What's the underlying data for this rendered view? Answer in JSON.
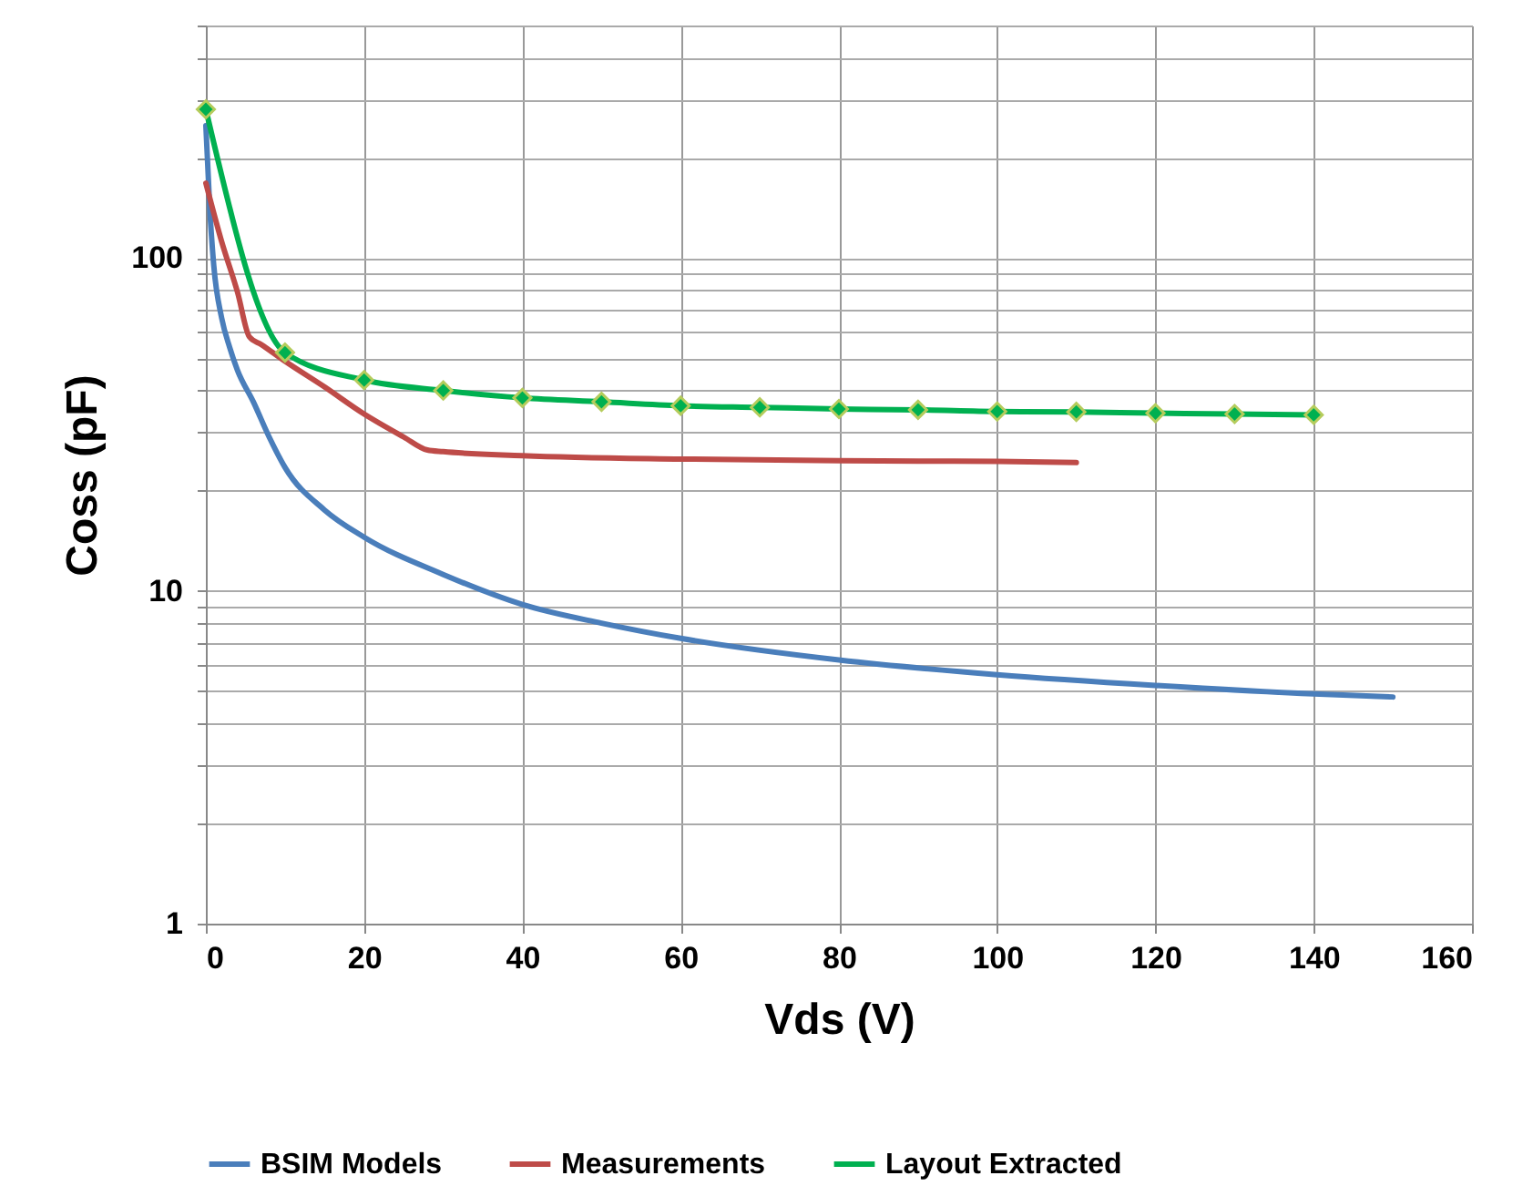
{
  "chart_data": {
    "type": "line",
    "xlabel": "Vds (V)",
    "ylabel": "Coss (pF)",
    "log": "y",
    "grid": true,
    "legend": "bottom",
    "line_style": "solid",
    "xlim": [
      0,
      160
    ],
    "xticks": [
      0,
      20,
      40,
      60,
      80,
      100,
      120,
      140,
      160
    ],
    "ylim": [
      1,
      500
    ],
    "yticks": [
      1,
      {
        "value": 2,
        "label": null
      },
      {
        "value": 3,
        "label": null
      },
      {
        "value": 4,
        "label": null
      },
      {
        "value": 5,
        "label": null
      },
      {
        "value": 6,
        "label": null
      },
      {
        "value": 7,
        "label": null
      },
      {
        "value": 8,
        "label": null
      },
      {
        "value": 9,
        "label": null
      },
      10,
      {
        "value": 20,
        "label": null
      },
      {
        "value": 30,
        "label": null
      },
      {
        "value": 40,
        "label": null
      },
      {
        "value": 50,
        "label": null
      },
      {
        "value": 60,
        "label": null
      },
      {
        "value": 70,
        "label": null
      },
      {
        "value": 80,
        "label": null
      },
      {
        "value": 90,
        "label": null
      },
      100,
      {
        "value": 200,
        "label": null
      },
      {
        "value": 300,
        "label": null
      },
      {
        "value": 400,
        "label": null
      },
      {
        "value": 500,
        "label": null
      }
    ],
    "series": [
      {
        "name": "BSIM Models",
        "color": "#4a7ebb",
        "marker": "none",
        "x": [
          0,
          0.5,
          1,
          2,
          3,
          4,
          6,
          8,
          10,
          15,
          20,
          30,
          40,
          50,
          60,
          80,
          100,
          120,
          140,
          150
        ],
        "values": [
          250,
          140,
          95,
          66,
          54,
          46,
          37,
          29,
          23.5,
          17.5,
          14.5,
          11.2,
          9.1,
          8.0,
          7.2,
          6.2,
          5.6,
          5.2,
          4.9,
          4.8
        ]
      },
      {
        "name": "Measurements",
        "color": "#be4b48",
        "marker": "none",
        "x": [
          0,
          2,
          4,
          5.5,
          7,
          10,
          15,
          20,
          25,
          28,
          30,
          40,
          60,
          80,
          100,
          110
        ],
        "values": [
          168,
          112,
          79,
          58,
          55,
          49,
          41,
          34,
          29,
          26.5,
          26.2,
          25.5,
          24.9,
          24.6,
          24.5,
          24.3
        ]
      },
      {
        "name": "Layout Extracted",
        "color": "#00b050",
        "marker": "diamond",
        "x": [
          0,
          10,
          20,
          30,
          40,
          50,
          60,
          70,
          80,
          90,
          100,
          110,
          120,
          130,
          140
        ],
        "values": [
          280,
          52,
          43,
          40,
          38,
          37,
          36,
          35.6,
          35.2,
          35,
          34.6,
          34.5,
          34.2,
          34,
          33.8
        ]
      }
    ]
  }
}
